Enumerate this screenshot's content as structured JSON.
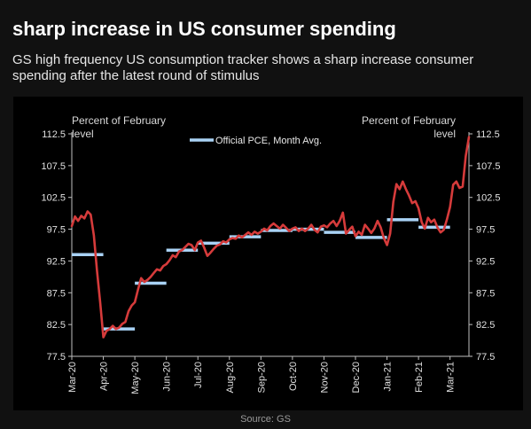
{
  "header": {
    "title": "sharp increase in US consumer spending",
    "subtitle": "GS high frequency US consumption tracker shows a sharp increase consumer spending after the latest round of stimulus"
  },
  "footer": {
    "source": "Source: GS"
  },
  "colors": {
    "background": "#111111",
    "panel": "#000000",
    "tracker_line": "#d63b3b",
    "pce_segments": "#a9d2f5",
    "axis": "#bfbfbf"
  },
  "chart_data": {
    "type": "line",
    "y_left_label": "Percent of February level",
    "y_right_label": "Percent of February level",
    "ylim": [
      77.5,
      112.5
    ],
    "yticks": [
      "112.5",
      "107.5",
      "102.5",
      "97.5",
      "92.5",
      "87.5",
      "82.5",
      "77.5"
    ],
    "x_range": [
      0,
      12.6
    ],
    "xticks": [
      {
        "label": "Mar-20",
        "x": 0
      },
      {
        "label": "Apr-20",
        "x": 1
      },
      {
        "label": "May-20",
        "x": 2
      },
      {
        "label": "Jun-20",
        "x": 3
      },
      {
        "label": "Jul-20",
        "x": 4
      },
      {
        "label": "Aug-20",
        "x": 5
      },
      {
        "label": "Sep-20",
        "x": 6
      },
      {
        "label": "Oct-20",
        "x": 7
      },
      {
        "label": "Nov-20",
        "x": 8
      },
      {
        "label": "Dec-20",
        "x": 9
      },
      {
        "label": "Jan-21",
        "x": 10
      },
      {
        "label": "Feb-21",
        "x": 11
      },
      {
        "label": "Mar-21",
        "x": 12
      }
    ],
    "grid": false,
    "legend_position": "top-center",
    "series": [
      {
        "style": "line",
        "points": [
          [
            0.0,
            98.0
          ],
          [
            0.1,
            99.5
          ],
          [
            0.2,
            98.8
          ],
          [
            0.3,
            99.6
          ],
          [
            0.4,
            99.2
          ],
          [
            0.5,
            100.3
          ],
          [
            0.6,
            99.8
          ],
          [
            0.7,
            96.5
          ],
          [
            0.8,
            91.0
          ],
          [
            0.9,
            86.0
          ],
          [
            1.0,
            80.5
          ],
          [
            1.1,
            81.5
          ],
          [
            1.2,
            81.8
          ],
          [
            1.3,
            82.3
          ],
          [
            1.4,
            81.8
          ],
          [
            1.5,
            82.0
          ],
          [
            1.6,
            82.6
          ],
          [
            1.7,
            82.9
          ],
          [
            1.8,
            84.6
          ],
          [
            1.9,
            85.5
          ],
          [
            2.0,
            86.0
          ],
          [
            2.1,
            88.0
          ],
          [
            2.2,
            89.8
          ],
          [
            2.3,
            89.2
          ],
          [
            2.4,
            89.5
          ],
          [
            2.5,
            90.0
          ],
          [
            2.6,
            90.6
          ],
          [
            2.7,
            91.2
          ],
          [
            2.8,
            91.0
          ],
          [
            2.9,
            91.7
          ],
          [
            3.0,
            92.0
          ],
          [
            3.1,
            92.6
          ],
          [
            3.2,
            93.4
          ],
          [
            3.3,
            93.1
          ],
          [
            3.4,
            94.0
          ],
          [
            3.5,
            94.2
          ],
          [
            3.6,
            94.7
          ],
          [
            3.7,
            95.2
          ],
          [
            3.8,
            95.0
          ],
          [
            3.9,
            94.2
          ],
          [
            4.0,
            95.4
          ],
          [
            4.1,
            95.7
          ],
          [
            4.2,
            94.6
          ],
          [
            4.3,
            93.3
          ],
          [
            4.4,
            93.8
          ],
          [
            4.5,
            94.4
          ],
          [
            4.6,
            94.9
          ],
          [
            4.7,
            95.1
          ],
          [
            4.8,
            95.6
          ],
          [
            4.9,
            95.4
          ],
          [
            5.0,
            95.9
          ],
          [
            5.1,
            96.1
          ],
          [
            5.2,
            96.0
          ],
          [
            5.3,
            96.5
          ],
          [
            5.4,
            96.2
          ],
          [
            5.5,
            96.6
          ],
          [
            5.6,
            97.0
          ],
          [
            5.7,
            96.6
          ],
          [
            5.8,
            97.1
          ],
          [
            5.9,
            96.8
          ],
          [
            6.0,
            97.1
          ],
          [
            6.1,
            97.6
          ],
          [
            6.2,
            97.3
          ],
          [
            6.3,
            98.0
          ],
          [
            6.4,
            98.4
          ],
          [
            6.5,
            98.0
          ],
          [
            6.6,
            97.6
          ],
          [
            6.7,
            98.2
          ],
          [
            6.8,
            97.7
          ],
          [
            6.9,
            97.2
          ],
          [
            7.0,
            97.6
          ],
          [
            7.1,
            97.8
          ],
          [
            7.2,
            97.2
          ],
          [
            7.3,
            97.6
          ],
          [
            7.4,
            97.2
          ],
          [
            7.5,
            97.6
          ],
          [
            7.6,
            98.2
          ],
          [
            7.7,
            97.4
          ],
          [
            7.8,
            97.0
          ],
          [
            7.9,
            97.9
          ],
          [
            8.0,
            98.1
          ],
          [
            8.1,
            97.8
          ],
          [
            8.2,
            98.4
          ],
          [
            8.3,
            98.8
          ],
          [
            8.4,
            98.0
          ],
          [
            8.5,
            98.8
          ],
          [
            8.6,
            100.1
          ],
          [
            8.7,
            96.8
          ],
          [
            8.8,
            97.4
          ],
          [
            8.9,
            97.9
          ],
          [
            9.0,
            96.4
          ],
          [
            9.1,
            97.1
          ],
          [
            9.2,
            96.6
          ],
          [
            9.3,
            98.2
          ],
          [
            9.4,
            97.6
          ],
          [
            9.5,
            96.9
          ],
          [
            9.6,
            97.6
          ],
          [
            9.7,
            98.8
          ],
          [
            9.8,
            97.8
          ],
          [
            9.9,
            96.1
          ],
          [
            10.0,
            95.0
          ],
          [
            10.1,
            96.8
          ],
          [
            10.2,
            101.8
          ],
          [
            10.3,
            104.6
          ],
          [
            10.4,
            103.8
          ],
          [
            10.5,
            105.0
          ],
          [
            10.6,
            103.8
          ],
          [
            10.7,
            102.8
          ],
          [
            10.8,
            101.6
          ],
          [
            10.9,
            101.9
          ],
          [
            11.0,
            100.8
          ],
          [
            11.1,
            98.6
          ],
          [
            11.2,
            97.6
          ],
          [
            11.3,
            99.3
          ],
          [
            11.4,
            98.6
          ],
          [
            11.5,
            99.0
          ],
          [
            11.6,
            97.8
          ],
          [
            11.7,
            97.0
          ],
          [
            11.8,
            97.4
          ],
          [
            11.9,
            99.0
          ],
          [
            12.0,
            101.0
          ],
          [
            12.1,
            104.5
          ],
          [
            12.2,
            105.0
          ],
          [
            12.3,
            104.0
          ],
          [
            12.4,
            104.2
          ],
          [
            12.5,
            109.0
          ],
          [
            12.6,
            112.0
          ]
        ]
      },
      {
        "name": "Official PCE, Month Avg.",
        "style": "segments",
        "segments": [
          {
            "x0": 0.0,
            "x1": 1.0,
            "y": 93.5
          },
          {
            "x0": 1.0,
            "x1": 2.0,
            "y": 81.8
          },
          {
            "x0": 2.0,
            "x1": 3.0,
            "y": 89.0
          },
          {
            "x0": 3.0,
            "x1": 4.0,
            "y": 94.2
          },
          {
            "x0": 4.0,
            "x1": 5.0,
            "y": 95.3
          },
          {
            "x0": 5.0,
            "x1": 6.0,
            "y": 96.3
          },
          {
            "x0": 6.0,
            "x1": 7.0,
            "y": 97.3
          },
          {
            "x0": 7.0,
            "x1": 8.0,
            "y": 97.5
          },
          {
            "x0": 8.0,
            "x1": 9.0,
            "y": 97.0
          },
          {
            "x0": 9.0,
            "x1": 10.0,
            "y": 96.2
          },
          {
            "x0": 10.0,
            "x1": 11.0,
            "y": 99.0
          },
          {
            "x0": 11.0,
            "x1": 12.0,
            "y": 97.8
          }
        ]
      }
    ]
  }
}
